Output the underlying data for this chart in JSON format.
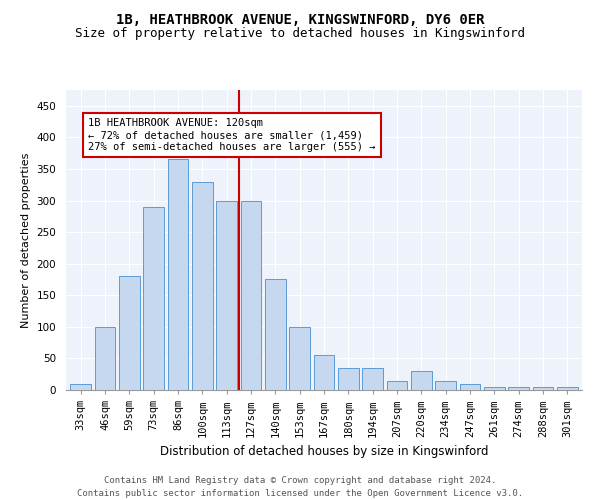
{
  "title": "1B, HEATHBROOK AVENUE, KINGSWINFORD, DY6 0ER",
  "subtitle": "Size of property relative to detached houses in Kingswinford",
  "xlabel": "Distribution of detached houses by size in Kingswinford",
  "ylabel": "Number of detached properties",
  "categories": [
    "33sqm",
    "46sqm",
    "59sqm",
    "73sqm",
    "86sqm",
    "100sqm",
    "113sqm",
    "127sqm",
    "140sqm",
    "153sqm",
    "167sqm",
    "180sqm",
    "194sqm",
    "207sqm",
    "220sqm",
    "234sqm",
    "247sqm",
    "261sqm",
    "274sqm",
    "288sqm",
    "301sqm"
  ],
  "values": [
    10,
    100,
    180,
    290,
    365,
    330,
    300,
    300,
    175,
    100,
    55,
    35,
    35,
    15,
    30,
    15,
    10,
    5,
    5,
    5,
    5
  ],
  "bar_color": "#c5d8f0",
  "bar_edge_color": "#5b9bd5",
  "vline_x": 6.5,
  "vline_color": "#cc0000",
  "annotation_line1": "1B HEATHBROOK AVENUE: 120sqm",
  "annotation_line2": "← 72% of detached houses are smaller (1,459)",
  "annotation_line3": "27% of semi-detached houses are larger (555) →",
  "annotation_box_color": "#cc0000",
  "ylim": [
    0,
    475
  ],
  "yticks": [
    0,
    50,
    100,
    150,
    200,
    250,
    300,
    350,
    400,
    450
  ],
  "background_color": "#eef2fa",
  "footer": "Contains HM Land Registry data © Crown copyright and database right 2024.\nContains public sector information licensed under the Open Government Licence v3.0.",
  "title_fontsize": 10,
  "subtitle_fontsize": 9,
  "xlabel_fontsize": 8.5,
  "ylabel_fontsize": 8,
  "tick_fontsize": 7.5,
  "annotation_fontsize": 7.5,
  "footer_fontsize": 6.5
}
